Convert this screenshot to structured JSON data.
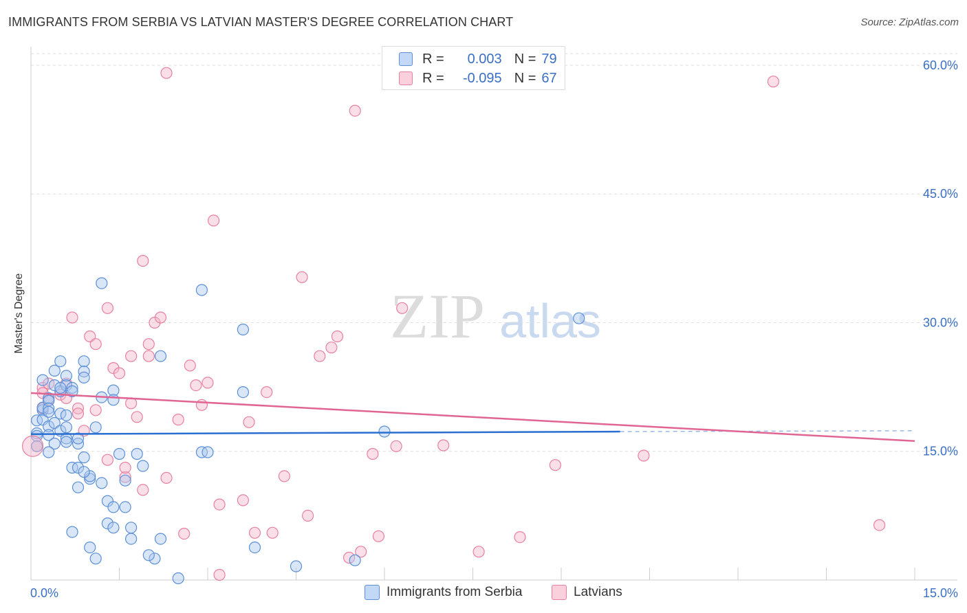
{
  "title": "IMMIGRANTS FROM SERBIA VS LATVIAN MASTER'S DEGREE CORRELATION CHART",
  "source": "Source: ZipAtlas.com",
  "watermark": {
    "zip": "ZIP",
    "atlas": "atlas"
  },
  "legend": {
    "r_label": "R =",
    "n_label": "N =",
    "series": [
      {
        "r": "0.003",
        "n": "79"
      },
      {
        "r": "-0.095",
        "n": "67"
      }
    ]
  },
  "colors": {
    "blue_fill": "#aac8f0",
    "blue_stroke": "#5b8fd6",
    "blue_line": "#2a6fd0",
    "pink_fill": "#f5b8cb",
    "pink_stroke": "#e7809f",
    "pink_line": "#e06592",
    "axis_text": "#3a6fc4"
  },
  "chart_data": {
    "type": "scatter",
    "title": "IMMIGRANTS FROM SERBIA VS LATVIAN MASTER'S DEGREE CORRELATION CHART",
    "xlabel": "",
    "ylabel": "Master's Degree",
    "xlim": [
      0,
      15
    ],
    "ylim": [
      0,
      62
    ],
    "x_tick_labels": [
      "0.0%",
      "15.0%"
    ],
    "y_ticks": [
      15,
      30,
      45,
      60
    ],
    "y_tick_labels": [
      "15.0%",
      "30.0%",
      "45.0%",
      "60.0%"
    ],
    "series": [
      {
        "name": "Immigrants from Serbia",
        "color": "blue",
        "trend": {
          "x0": 0,
          "y0": 17.0,
          "x1": 10.0,
          "y1": 17.3,
          "dash_to_x": 15,
          "dash_y": 17.4
        },
        "points": [
          [
            0.1,
            18.6
          ],
          [
            0.1,
            17.1
          ],
          [
            0.1,
            16.8
          ],
          [
            0.2,
            19.8
          ],
          [
            0.2,
            20.1
          ],
          [
            0.2,
            18.7
          ],
          [
            0.2,
            23.3
          ],
          [
            0.3,
            21.2
          ],
          [
            0.3,
            20.9
          ],
          [
            0.3,
            20.0
          ],
          [
            0.3,
            19.6
          ],
          [
            0.3,
            17.9
          ],
          [
            0.3,
            16.9
          ],
          [
            0.4,
            24.4
          ],
          [
            0.4,
            22.7
          ],
          [
            0.4,
            18.3
          ],
          [
            0.4,
            15.9
          ],
          [
            0.5,
            25.5
          ],
          [
            0.5,
            22.0
          ],
          [
            0.5,
            19.4
          ],
          [
            0.5,
            17.4
          ],
          [
            0.6,
            23.8
          ],
          [
            0.6,
            22.7
          ],
          [
            0.6,
            19.2
          ],
          [
            0.6,
            17.8
          ],
          [
            0.6,
            16.5
          ],
          [
            0.6,
            16.1
          ],
          [
            0.7,
            22.4
          ],
          [
            0.7,
            22.0
          ],
          [
            0.7,
            13.1
          ],
          [
            0.8,
            15.9
          ],
          [
            0.8,
            16.5
          ],
          [
            0.8,
            13.1
          ],
          [
            0.8,
            10.8
          ],
          [
            0.9,
            25.5
          ],
          [
            0.9,
            24.3
          ],
          [
            0.9,
            23.6
          ],
          [
            0.9,
            14.3
          ],
          [
            1.0,
            11.8
          ],
          [
            1.0,
            12.1
          ],
          [
            1.1,
            17.8
          ],
          [
            1.2,
            34.6
          ],
          [
            1.2,
            21.3
          ],
          [
            1.3,
            9.2
          ],
          [
            1.3,
            6.6
          ],
          [
            1.4,
            22.1
          ],
          [
            1.4,
            21.0
          ],
          [
            1.4,
            8.5
          ],
          [
            1.5,
            14.7
          ],
          [
            1.6,
            11.6
          ],
          [
            1.6,
            8.5
          ],
          [
            1.7,
            4.8
          ],
          [
            1.7,
            6.1
          ],
          [
            1.8,
            14.7
          ],
          [
            1.9,
            13.3
          ],
          [
            2.1,
            2.5
          ],
          [
            2.2,
            26.1
          ],
          [
            2.2,
            4.8
          ],
          [
            2.5,
            0.2
          ],
          [
            2.9,
            33.8
          ],
          [
            2.9,
            14.9
          ],
          [
            3.0,
            14.9
          ],
          [
            3.6,
            29.2
          ],
          [
            3.6,
            21.9
          ],
          [
            3.8,
            3.8
          ],
          [
            4.5,
            1.6
          ],
          [
            5.5,
            2.3
          ],
          [
            6.0,
            17.3
          ],
          [
            9.3,
            30.5
          ],
          [
            0.7,
            5.6
          ],
          [
            1.0,
            3.8
          ],
          [
            1.1,
            2.5
          ],
          [
            1.4,
            6.1
          ],
          [
            2.0,
            2.9
          ],
          [
            1.2,
            11.3
          ],
          [
            0.1,
            15.6
          ],
          [
            0.3,
            14.9
          ],
          [
            0.9,
            12.6
          ],
          [
            0.5,
            22.4
          ]
        ]
      },
      {
        "name": "Latvians",
        "color": "pink",
        "trend": {
          "x0": 0,
          "y0": 21.8,
          "x1": 15,
          "y1": 16.2
        },
        "points": [
          [
            0.1,
            15.6
          ],
          [
            0.2,
            22.4
          ],
          [
            0.2,
            20.0
          ],
          [
            0.3,
            22.9
          ],
          [
            0.3,
            21.0
          ],
          [
            0.5,
            21.6
          ],
          [
            0.6,
            22.9
          ],
          [
            0.6,
            21.2
          ],
          [
            0.7,
            30.6
          ],
          [
            0.8,
            20.0
          ],
          [
            0.8,
            19.4
          ],
          [
            0.9,
            17.4
          ],
          [
            1.0,
            28.4
          ],
          [
            1.1,
            27.5
          ],
          [
            1.3,
            14.0
          ],
          [
            1.3,
            31.7
          ],
          [
            1.4,
            24.7
          ],
          [
            1.5,
            24.1
          ],
          [
            1.6,
            12.0
          ],
          [
            1.6,
            13.1
          ],
          [
            1.7,
            26.1
          ],
          [
            1.7,
            20.6
          ],
          [
            1.8,
            19.0
          ],
          [
            1.9,
            10.5
          ],
          [
            1.9,
            37.2
          ],
          [
            2.0,
            27.5
          ],
          [
            2.0,
            26.1
          ],
          [
            2.1,
            30.0
          ],
          [
            2.2,
            30.6
          ],
          [
            2.3,
            59.1
          ],
          [
            2.3,
            11.9
          ],
          [
            2.5,
            18.7
          ],
          [
            2.6,
            5.4
          ],
          [
            2.7,
            25.0
          ],
          [
            2.8,
            22.7
          ],
          [
            2.9,
            20.4
          ],
          [
            3.0,
            23.0
          ],
          [
            3.1,
            41.9
          ],
          [
            3.2,
            8.8
          ],
          [
            3.2,
            0.6
          ],
          [
            3.6,
            9.3
          ],
          [
            3.7,
            18.4
          ],
          [
            3.8,
            5.5
          ],
          [
            4.0,
            21.9
          ],
          [
            4.1,
            5.5
          ],
          [
            4.3,
            12.1
          ],
          [
            4.6,
            35.3
          ],
          [
            4.7,
            7.5
          ],
          [
            4.9,
            26.1
          ],
          [
            5.1,
            27.1
          ],
          [
            5.2,
            28.4
          ],
          [
            5.4,
            2.6
          ],
          [
            5.5,
            54.7
          ],
          [
            5.6,
            3.3
          ],
          [
            5.8,
            14.7
          ],
          [
            5.9,
            5.1
          ],
          [
            6.2,
            15.6
          ],
          [
            6.3,
            31.7
          ],
          [
            7.0,
            15.7
          ],
          [
            7.6,
            3.3
          ],
          [
            8.3,
            5.0
          ],
          [
            8.9,
            13.4
          ],
          [
            10.4,
            14.5
          ],
          [
            12.6,
            58.1
          ],
          [
            14.4,
            6.4
          ],
          [
            0.2,
            21.8
          ],
          [
            1.1,
            19.8
          ]
        ]
      }
    ]
  },
  "bottom_legend": [
    "Immigrants from Serbia",
    "Latvians"
  ]
}
